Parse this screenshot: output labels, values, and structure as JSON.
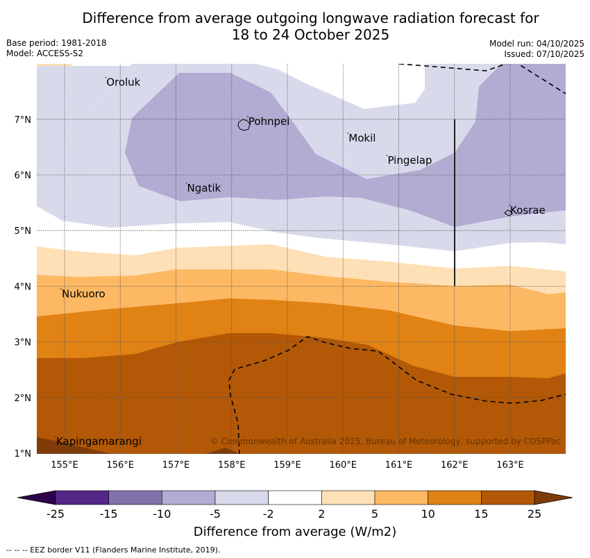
{
  "title": {
    "line1": "Difference from average outgoing longwave radiation forecast for",
    "line2": "18 to 24 October 2025"
  },
  "meta": {
    "base_period": "Base period: 1981-2018",
    "model": "Model: ACCESS-S2",
    "model_run": "Model run: 04/10/2025",
    "issued": "Issued: 07/10/2025"
  },
  "map": {
    "lon_range": [
      154.5,
      164.0
    ],
    "lat_range": [
      1.0,
      8.0
    ],
    "lon_ticks": [
      "155°E",
      "156°E",
      "157°E",
      "158°E",
      "159°E",
      "160°E",
      "161°E",
      "162°E",
      "163°E"
    ],
    "lat_ticks": [
      "1°N",
      "2°N",
      "3°N",
      "4°N",
      "5°N",
      "6°N",
      "7°N"
    ],
    "places": [
      {
        "name": "Oroluk",
        "lon": 155.75,
        "lat": 7.6
      },
      {
        "name": "Pohnpei",
        "lon": 158.3,
        "lat": 6.9
      },
      {
        "name": "Mokil",
        "lon": 160.1,
        "lat": 6.6
      },
      {
        "name": "Pingelap",
        "lon": 160.8,
        "lat": 6.2
      },
      {
        "name": "Ngatik",
        "lon": 157.2,
        "lat": 5.7
      },
      {
        "name": "Kosrae",
        "lon": 163.0,
        "lat": 5.3
      },
      {
        "name": "Nukuoro",
        "lon": 154.95,
        "lat": 3.8
      },
      {
        "name": "Kapingamarangi",
        "lon": 154.85,
        "lat": 1.15
      }
    ],
    "credit": "© Commonwealth of Australia 2025, Bureau of Meteorology, supported by COSPPac"
  },
  "colorbar": {
    "title": "Difference from average (W/m2)",
    "ticks": [
      "-25",
      "-15",
      "-10",
      "-5",
      "-2",
      "2",
      "5",
      "10",
      "15",
      "25"
    ],
    "colors": [
      "#542788",
      "#8073ac",
      "#b2abd2",
      "#d8daeb",
      "#ffffff",
      "#fee0b6",
      "#fdb863",
      "#e08214",
      "#b35806"
    ],
    "under_color": "#2d004b",
    "over_color": "#7f3b08"
  },
  "footer": "-- -- -- EEZ border V11 (Flanders Marine Institute, 2019)."
}
